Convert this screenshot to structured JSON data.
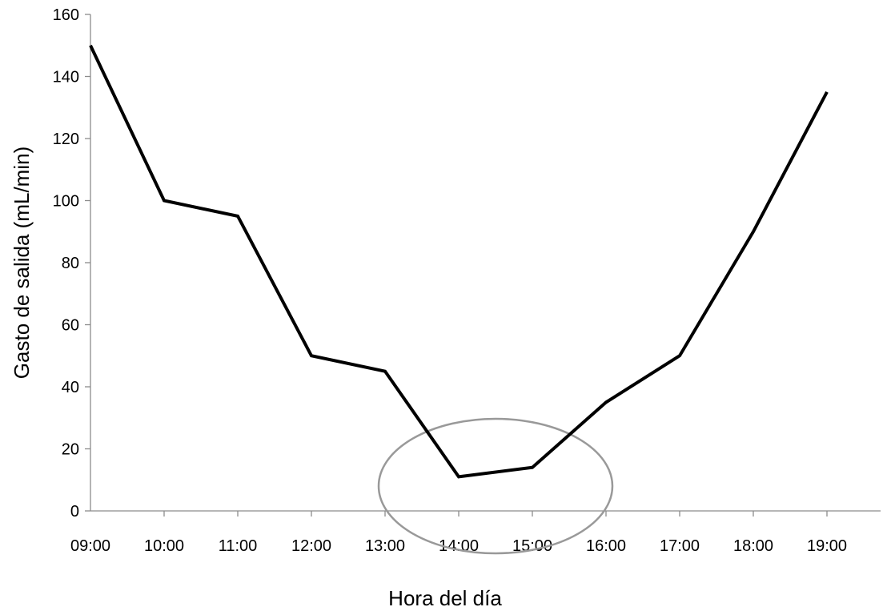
{
  "chart_data": {
    "type": "line",
    "title": "",
    "xlabel": "Hora del día",
    "ylabel": "Gasto de salida (mL/min)",
    "categories": [
      "09:00",
      "10:00",
      "11:00",
      "12:00",
      "13:00",
      "14:00",
      "15:00",
      "16:00",
      "17:00",
      "18:00",
      "19:00"
    ],
    "series": [
      {
        "values": [
          150,
          100,
          95,
          50,
          45,
          11,
          14,
          35,
          50,
          90,
          135
        ]
      }
    ],
    "ylim": [
      0,
      160
    ],
    "yticks": [
      0,
      20,
      40,
      60,
      80,
      100,
      120,
      140,
      160
    ],
    "grid": false,
    "legend": "none",
    "line_color": "#000000",
    "annotation": {
      "shape": "ellipse",
      "color": "#999999",
      "center_x": "14:00-15:00",
      "center_y": 8
    }
  }
}
